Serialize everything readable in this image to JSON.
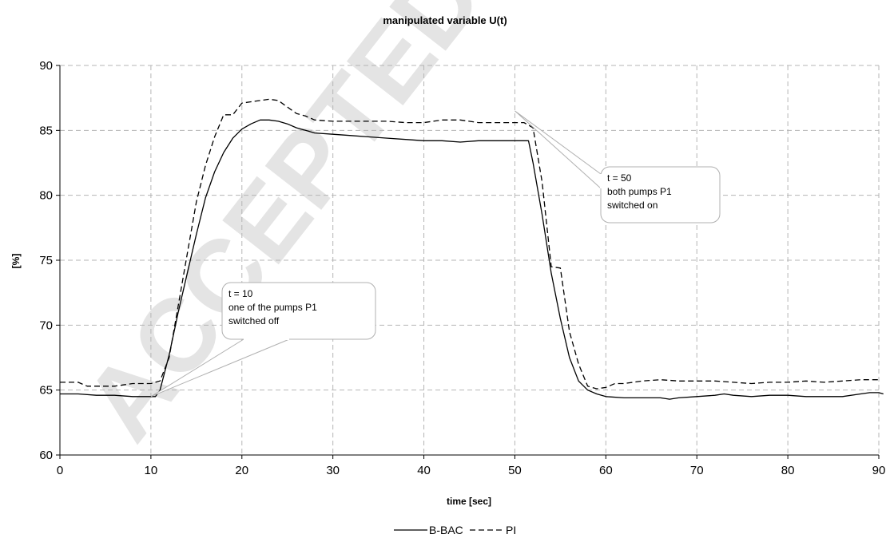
{
  "watermark": "ACCEPTED MANUSCRIPT",
  "chart_data": {
    "type": "line",
    "title": "manipulated variable U(t)",
    "xlabel": "time [sec]",
    "ylabel": "[%]",
    "xlim": [
      0,
      90
    ],
    "ylim": [
      60,
      90
    ],
    "xticks": [
      0,
      10,
      20,
      30,
      40,
      50,
      60,
      70,
      80,
      90
    ],
    "yticks": [
      60,
      65,
      70,
      75,
      80,
      85,
      90
    ],
    "grid": true,
    "legend_position": "bottom-center",
    "series": [
      {
        "name": "B-BAC",
        "style": "solid",
        "color": "#000000",
        "x": [
          0,
          2,
          4,
          6,
          8,
          10,
          10.5,
          11,
          12,
          13,
          14,
          15,
          16,
          17,
          18,
          19,
          20,
          21,
          22,
          23,
          24,
          25,
          26,
          27,
          28,
          30,
          32,
          34,
          36,
          38,
          40,
          42,
          44,
          46,
          48,
          50,
          51,
          51.5,
          52,
          53,
          54,
          55,
          56,
          57,
          58,
          59,
          60,
          62,
          64,
          66,
          67,
          68,
          70,
          72,
          73,
          74,
          76,
          78,
          80,
          82,
          84,
          86,
          88,
          89,
          90,
          90.5
        ],
        "y": [
          64.7,
          64.7,
          64.6,
          64.6,
          64.5,
          64.5,
          64.5,
          65.0,
          67.7,
          71.0,
          74.0,
          77.0,
          79.8,
          81.8,
          83.3,
          84.4,
          85.1,
          85.5,
          85.8,
          85.8,
          85.7,
          85.5,
          85.2,
          85.0,
          84.8,
          84.7,
          84.6,
          84.5,
          84.4,
          84.3,
          84.2,
          84.2,
          84.1,
          84.2,
          84.2,
          84.2,
          84.2,
          84.2,
          82.5,
          78.5,
          74.0,
          70.5,
          67.5,
          65.7,
          65.0,
          64.7,
          64.5,
          64.4,
          64.4,
          64.4,
          64.3,
          64.4,
          64.5,
          64.6,
          64.7,
          64.6,
          64.5,
          64.6,
          64.6,
          64.5,
          64.5,
          64.5,
          64.7,
          64.8,
          64.8,
          64.7
        ]
      },
      {
        "name": "PI",
        "style": "dashed",
        "color": "#000000",
        "x": [
          0,
          2,
          3,
          4,
          6,
          8,
          9,
          10,
          11,
          12,
          13,
          14,
          15,
          16,
          17,
          18,
          19,
          20,
          21,
          22,
          23,
          24,
          25,
          26,
          27,
          28,
          30,
          32,
          34,
          36,
          38,
          40,
          42,
          43,
          44,
          46,
          48,
          50,
          51,
          52,
          53,
          54,
          55,
          56,
          57,
          58,
          59,
          60,
          61,
          62,
          64,
          66,
          68,
          70,
          72,
          74,
          76,
          78,
          80,
          82,
          84,
          86,
          88,
          90
        ],
        "y": [
          65.6,
          65.6,
          65.3,
          65.3,
          65.3,
          65.5,
          65.5,
          65.5,
          65.7,
          67.5,
          71.5,
          75.5,
          79.5,
          82.3,
          84.5,
          86.2,
          86.2,
          87.1,
          87.2,
          87.3,
          87.4,
          87.3,
          86.8,
          86.3,
          86.1,
          85.8,
          85.7,
          85.7,
          85.7,
          85.7,
          85.6,
          85.6,
          85.8,
          85.8,
          85.8,
          85.6,
          85.6,
          85.6,
          85.6,
          85.2,
          81.0,
          74.5,
          74.4,
          69.5,
          67.0,
          65.3,
          65.1,
          65.2,
          65.5,
          65.5,
          65.7,
          65.8,
          65.7,
          65.7,
          65.7,
          65.6,
          65.5,
          65.6,
          65.6,
          65.7,
          65.6,
          65.7,
          65.8,
          65.8
        ]
      }
    ],
    "annotations": [
      {
        "x": 10,
        "y": 64.5,
        "lines": [
          "t = 10",
          "one of the pumps P1",
          "switched off"
        ]
      },
      {
        "x": 50,
        "y": 86.5,
        "lines": [
          "t = 50",
          "both pumps P1",
          "switched on"
        ]
      }
    ]
  }
}
